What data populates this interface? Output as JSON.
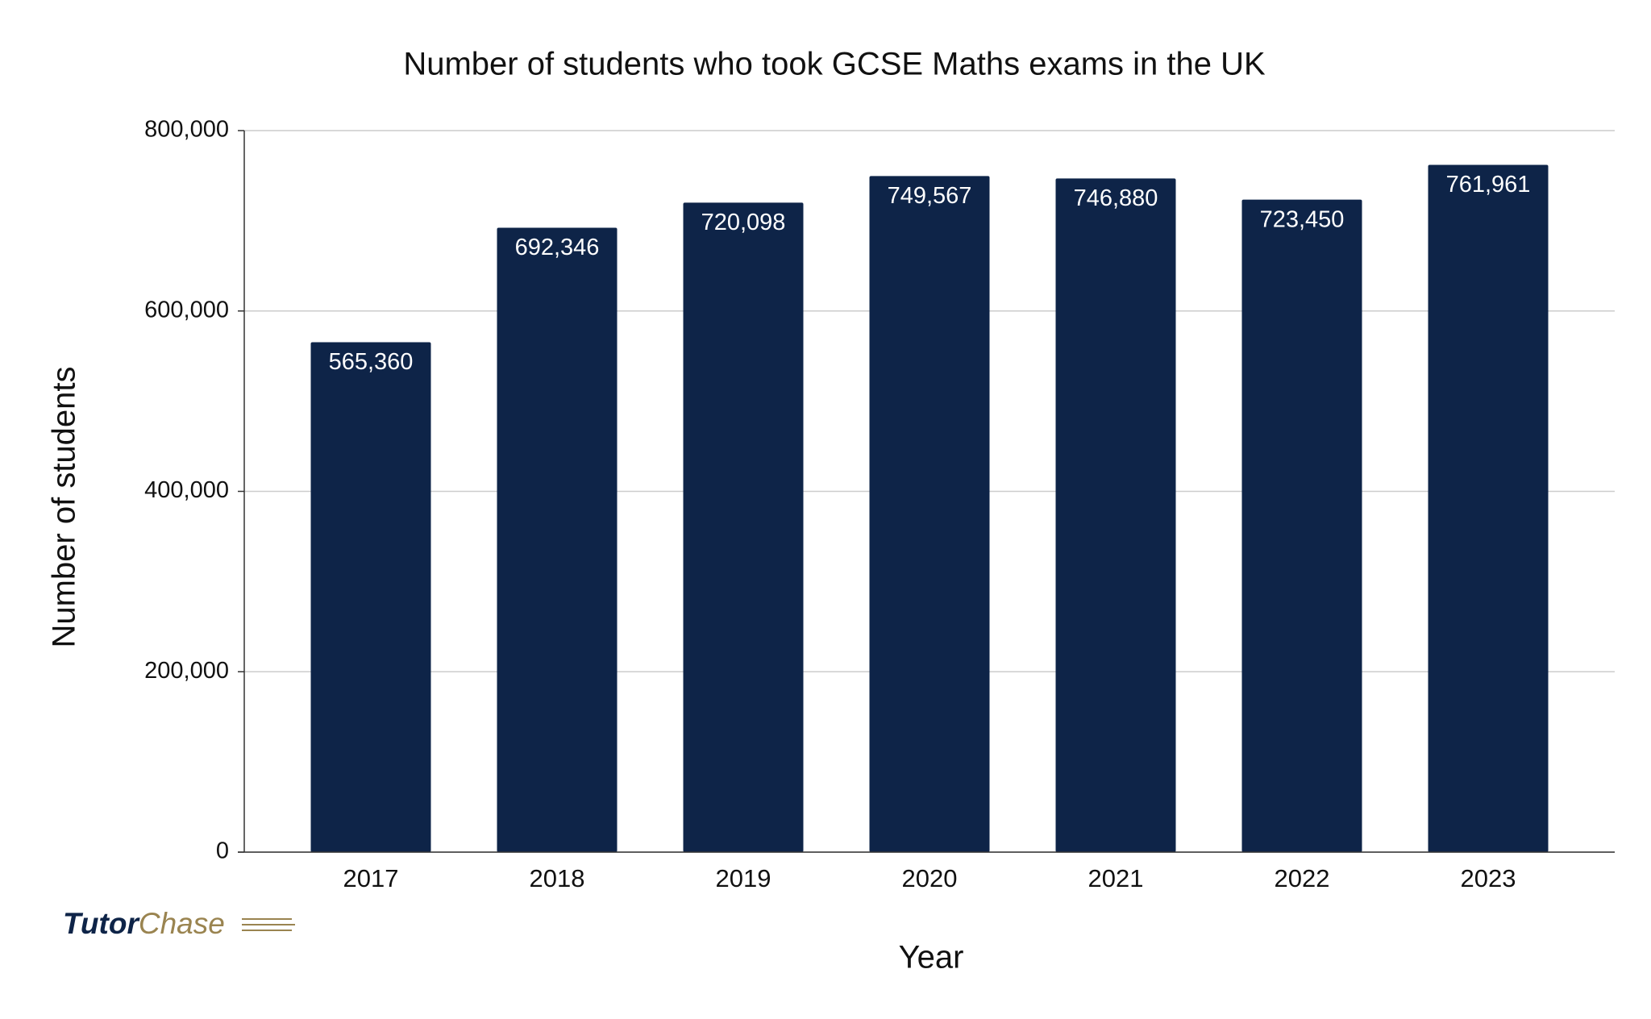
{
  "chart_data": {
    "type": "bar",
    "title": "Number of students who took GCSE Maths exams in the UK",
    "x_label": "Year",
    "y_label": "Number of students",
    "categories": [
      "2017",
      "2018",
      "2019",
      "2020",
      "2021",
      "2022",
      "2023"
    ],
    "values": [
      565360,
      692346,
      720098,
      749567,
      746880,
      723450,
      761961
    ],
    "value_labels": [
      "565,360",
      "692,346",
      "720,098",
      "749,567",
      "746,880",
      "723,450",
      "761,961"
    ],
    "color": "#0e2448",
    "ylim": [
      0,
      800000
    ],
    "yticks": [
      0,
      {
        "value": 200000,
        "label": "200,000"
      },
      {
        "value": 400000,
        "label": "400,000"
      },
      {
        "value": 600000,
        "label": "600,000"
      },
      {
        "value": 800000,
        "label": "800,000"
      }
    ],
    "grid": true,
    "watermark": [
      "Tutor",
      "Chase"
    ]
  }
}
